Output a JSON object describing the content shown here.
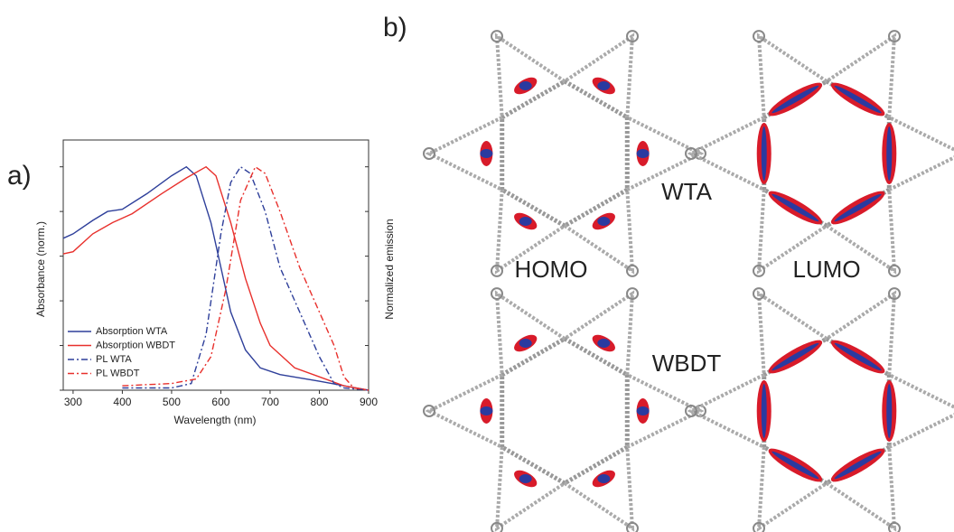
{
  "panel_a": "a)",
  "panel_b": "b)",
  "chart_data": {
    "type": "line",
    "xlabel": "Wavelength (nm)",
    "ylabel": "Absorbance (norm.)",
    "y2label": "Normalized emission",
    "xlim": [
      280,
      900
    ],
    "xticks": [
      300,
      400,
      500,
      600,
      700,
      800,
      900
    ],
    "ylim": [
      0,
      1.12
    ],
    "yticks": [
      0,
      0.2,
      0.4,
      0.6,
      0.8,
      1.0
    ],
    "legend": "lower left",
    "series": [
      {
        "name": "Absorption WTA",
        "color": "#2e3f9a",
        "style": "solid",
        "x": [
          280,
          300,
          340,
          370,
          400,
          450,
          500,
          530,
          550,
          580,
          600,
          620,
          650,
          680,
          720,
          800,
          850,
          900
        ],
        "values": [
          0.68,
          0.7,
          0.76,
          0.8,
          0.81,
          0.88,
          0.96,
          1.0,
          0.96,
          0.75,
          0.55,
          0.35,
          0.18,
          0.1,
          0.07,
          0.04,
          0.02,
          0
        ]
      },
      {
        "name": "Absorption WBDT",
        "color": "#e8302c",
        "style": "solid",
        "x": [
          280,
          300,
          340,
          380,
          420,
          480,
          530,
          570,
          590,
          620,
          650,
          680,
          700,
          750,
          800,
          850,
          900
        ],
        "values": [
          0.61,
          0.62,
          0.7,
          0.75,
          0.79,
          0.88,
          0.95,
          1.0,
          0.96,
          0.75,
          0.5,
          0.3,
          0.2,
          0.1,
          0.06,
          0.02,
          0
        ]
      },
      {
        "name": "PL WTA",
        "color": "#2e3f9a",
        "style": "dashdot",
        "x": [
          400,
          500,
          540,
          570,
          600,
          620,
          640,
          660,
          690,
          720,
          760,
          800,
          830,
          850,
          900
        ],
        "values": [
          0.01,
          0.01,
          0.03,
          0.25,
          0.7,
          0.93,
          1.0,
          0.97,
          0.8,
          0.55,
          0.35,
          0.15,
          0.03,
          0.01,
          0
        ]
      },
      {
        "name": "PL WBDT",
        "color": "#e8302c",
        "style": "dashdot",
        "x": [
          400,
          500,
          550,
          580,
          610,
          640,
          670,
          690,
          720,
          760,
          800,
          830,
          850,
          870,
          900
        ],
        "values": [
          0.02,
          0.03,
          0.05,
          0.15,
          0.45,
          0.85,
          1.0,
          0.97,
          0.8,
          0.55,
          0.35,
          0.2,
          0.06,
          0.01,
          0
        ]
      }
    ]
  },
  "structures": {
    "top_label": "WTA",
    "bottom_label": "WBDT",
    "homo": "HOMO",
    "lumo": "LUMO"
  }
}
